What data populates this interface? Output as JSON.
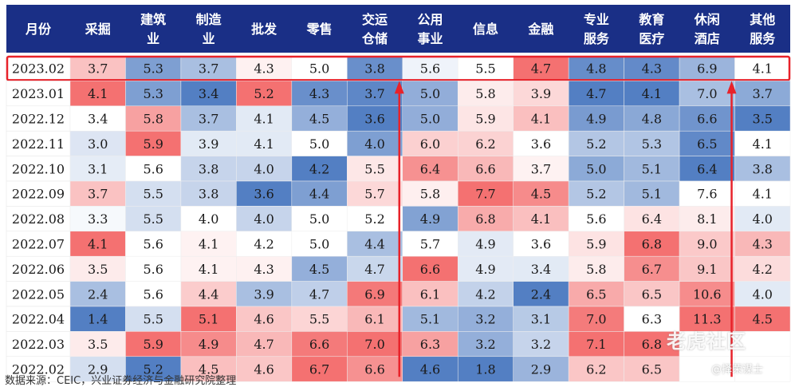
{
  "chart_data": {
    "type": "heatmap",
    "columns": [
      [
        "月份"
      ],
      [
        "采掘"
      ],
      [
        "建筑",
        "业"
      ],
      [
        "制造",
        "业"
      ],
      [
        "批发"
      ],
      [
        "零售"
      ],
      [
        "交运",
        "仓储"
      ],
      [
        "公用",
        "事业"
      ],
      [
        "信息"
      ],
      [
        "金融"
      ],
      [
        "专业",
        "服务"
      ],
      [
        "教育",
        "医疗"
      ],
      [
        "休闲",
        "酒店"
      ],
      [
        "其他",
        "服务"
      ]
    ],
    "rows": [
      {
        "month": "2023.02",
        "values": [
          "3.7",
          "5.3",
          "3.7",
          "4.3",
          "5.0",
          "3.8",
          "5.6",
          "5.5",
          "4.7",
          "4.8",
          "4.3",
          "6.9",
          "4.1"
        ]
      },
      {
        "month": "2023.01",
        "values": [
          "4.1",
          "5.3",
          "3.4",
          "5.2",
          "4.3",
          "3.7",
          "5.0",
          "5.8",
          "3.9",
          "4.7",
          "4.1",
          "7.0",
          "3.7"
        ]
      },
      {
        "month": "2022.12",
        "values": [
          "3.4",
          "5.8",
          "3.7",
          "4.1",
          "4.5",
          "3.6",
          "5.0",
          "5.9",
          "4.1",
          "4.9",
          "4.8",
          "6.6",
          "3.5"
        ]
      },
      {
        "month": "2022.11",
        "values": [
          "3.0",
          "5.9",
          "3.9",
          "4.1",
          "5.0",
          "4.0",
          "6.0",
          "6.2",
          "3.6",
          "5.2",
          "5.3",
          "6.5",
          "4.1"
        ]
      },
      {
        "month": "2022.10",
        "values": [
          "3.1",
          "5.6",
          "3.8",
          "4.0",
          "4.2",
          "5.5",
          "6.4",
          "6.6",
          "3.7",
          "5.0",
          "5.1",
          "6.4",
          "3.8"
        ]
      },
      {
        "month": "2022.09",
        "values": [
          "3.7",
          "5.5",
          "3.8",
          "3.6",
          "4.4",
          "5.7",
          "5.8",
          "7.7",
          "4.5",
          "5.2",
          "5.1",
          "7.6",
          "4.1"
        ]
      },
      {
        "month": "2022.08",
        "values": [
          "3.3",
          "5.5",
          "4.0",
          "4.0",
          "5.0",
          "5.2",
          "4.9",
          "6.8",
          "4.1",
          "5.6",
          "6.4",
          "8.1",
          "4.0"
        ]
      },
      {
        "month": "2022.07",
        "values": [
          "4.1",
          "5.6",
          "4.1",
          "4.2",
          "5.0",
          "4.4",
          "5.7",
          "4.9",
          "3.6",
          "5.9",
          "6.8",
          "9.0",
          "4.3"
        ]
      },
      {
        "month": "2022.06",
        "values": [
          "3.5",
          "5.6",
          "4.1",
          "4.3",
          "4.5",
          "4.7",
          "6.6",
          "4.9",
          "3.4",
          "5.8",
          "6.7",
          "9.1",
          "4.2"
        ]
      },
      {
        "month": "2022.05",
        "values": [
          "2.4",
          "5.6",
          "4.4",
          "3.9",
          "4.7",
          "6.9",
          "6.1",
          "4.2",
          "2.4",
          "6.5",
          "6.5",
          "10.6",
          "4.0"
        ]
      },
      {
        "month": "2022.04",
        "values": [
          "1.4",
          "5.5",
          "5.1",
          "4.6",
          "5.5",
          "6.1",
          "5.1",
          "3.2",
          "3.1",
          "7.0",
          "6.3",
          "11.3",
          "4.5"
        ]
      },
      {
        "month": "2022.03",
        "values": [
          "3.5",
          "5.9",
          "4.9",
          "4.7",
          "6.6",
          "7.0",
          "6.3",
          "3.2",
          "3.2",
          "7.1",
          "6.8",
          "",
          ""
        ]
      },
      {
        "month": "2022.02",
        "values": [
          "2.9",
          "5.2",
          "4.5",
          "4.6",
          "6.7",
          "6.6",
          "4.6",
          "1.8",
          "2.9",
          "6.2",
          "6.5",
          "",
          ""
        ]
      }
    ],
    "highlight_row": "2023.02",
    "color_scale": {
      "low": "#4a78c0",
      "mid": "#ffffff",
      "high": "#f36a6a"
    },
    "header_color": "#1a2f86",
    "highlight_color": "#e8222a",
    "arrow_color": "#e8222a",
    "arrows_under_columns": [
      "交运仓储",
      "休闲酒店"
    ]
  },
  "source_note": "数据来源：CEIC，兴业证券经济与金融研究院整理",
  "watermark": {
    "logo": "老虎社区",
    "user": "@择荣谋士"
  }
}
